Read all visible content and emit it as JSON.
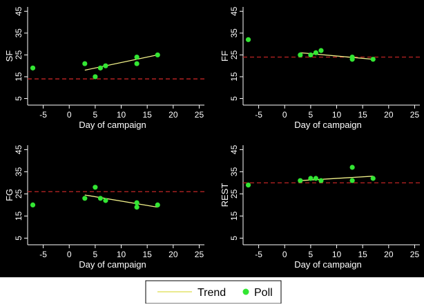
{
  "colors": {
    "background": "#000000",
    "axis": "#ffffff",
    "poll": "#33e633",
    "trend": "#f2f28a",
    "reference": "#b22222",
    "legend_bg": "#ffffff",
    "legend_text": "#000000"
  },
  "legend": {
    "trend_label": "Trend",
    "poll_label": "Poll"
  },
  "chart_data": [
    {
      "type": "scatter",
      "ylabel": "SF",
      "xlabel": "Day of campaign",
      "xlim": [
        -8,
        26
      ],
      "ylim": [
        2,
        47
      ],
      "xticks": [
        -5,
        0,
        5,
        10,
        15,
        20,
        25
      ],
      "yticks": [
        5,
        15,
        25,
        35,
        45
      ],
      "reference_line": 14,
      "points": [
        [
          -7,
          19
        ],
        [
          3,
          21
        ],
        [
          5,
          15
        ],
        [
          6,
          19
        ],
        [
          7,
          20
        ],
        [
          13,
          24
        ],
        [
          13,
          21
        ],
        [
          17,
          25
        ]
      ],
      "trend": [
        [
          3,
          18
        ],
        [
          17,
          25
        ]
      ]
    },
    {
      "type": "scatter",
      "ylabel": "FF",
      "xlabel": "Day of campaign",
      "xlim": [
        -8,
        26
      ],
      "ylim": [
        2,
        47
      ],
      "xticks": [
        -5,
        0,
        5,
        10,
        15,
        20,
        25
      ],
      "yticks": [
        5,
        15,
        25,
        35,
        45
      ],
      "reference_line": 24,
      "points": [
        [
          -7,
          32
        ],
        [
          3,
          25
        ],
        [
          5,
          25
        ],
        [
          6,
          26
        ],
        [
          7,
          27
        ],
        [
          13,
          24
        ],
        [
          13,
          23
        ],
        [
          17,
          23
        ]
      ],
      "trend": [
        [
          3,
          26
        ],
        [
          17,
          23
        ]
      ]
    },
    {
      "type": "scatter",
      "ylabel": "FG",
      "xlabel": "Day of campaign",
      "xlim": [
        -8,
        26
      ],
      "ylim": [
        2,
        47
      ],
      "xticks": [
        -5,
        0,
        5,
        10,
        15,
        20,
        25
      ],
      "yticks": [
        5,
        15,
        25,
        35,
        45
      ],
      "reference_line": 26,
      "points": [
        [
          -7,
          20
        ],
        [
          3,
          23
        ],
        [
          5,
          28
        ],
        [
          6,
          23
        ],
        [
          7,
          22
        ],
        [
          13,
          21
        ],
        [
          13,
          19
        ],
        [
          17,
          20
        ]
      ],
      "trend": [
        [
          3,
          24.5
        ],
        [
          17,
          19
        ]
      ]
    },
    {
      "type": "scatter",
      "ylabel": "REST",
      "xlabel": "Day of campaign",
      "xlim": [
        -8,
        26
      ],
      "ylim": [
        2,
        47
      ],
      "xticks": [
        -5,
        0,
        5,
        10,
        15,
        20,
        25
      ],
      "yticks": [
        5,
        15,
        25,
        35,
        45
      ],
      "reference_line": 30,
      "points": [
        [
          -7,
          29
        ],
        [
          3,
          31
        ],
        [
          5,
          32
        ],
        [
          6,
          32
        ],
        [
          7,
          31
        ],
        [
          13,
          37
        ],
        [
          13,
          31
        ],
        [
          17,
          32
        ]
      ],
      "trend": [
        [
          3,
          31
        ],
        [
          17,
          33
        ]
      ]
    }
  ]
}
